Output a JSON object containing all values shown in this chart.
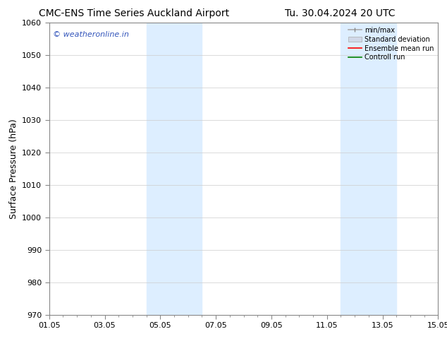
{
  "title_left": "CMC-ENS Time Series Auckland Airport",
  "title_right": "Tu. 30.04.2024 20 UTC",
  "ylabel": "Surface Pressure (hPa)",
  "watermark": "© weatheronline.in",
  "xlim_start": 0,
  "xlim_end": 14,
  "ylim": [
    970,
    1060
  ],
  "yticks": [
    970,
    980,
    990,
    1000,
    1010,
    1020,
    1030,
    1040,
    1050,
    1060
  ],
  "xtick_labels": [
    "01.05",
    "03.05",
    "05.05",
    "07.05",
    "09.05",
    "11.05",
    "13.05",
    "15.05"
  ],
  "xtick_positions": [
    0,
    2,
    4,
    6,
    8,
    10,
    12,
    14
  ],
  "shaded_bands": [
    {
      "x_start": 3.5,
      "x_end": 5.5
    },
    {
      "x_start": 10.5,
      "x_end": 12.5
    }
  ],
  "band_color": "#ddeeff",
  "legend_labels": [
    "min/max",
    "Standard deviation",
    "Ensemble mean run",
    "Controll run"
  ],
  "bg_color": "#ffffff",
  "spine_color": "#888888",
  "tick_color": "#444444",
  "grid_color": "#cccccc",
  "title_fontsize": 10,
  "axis_fontsize": 8,
  "ylabel_fontsize": 9,
  "watermark_color": "#3355bb",
  "watermark_fontsize": 8
}
